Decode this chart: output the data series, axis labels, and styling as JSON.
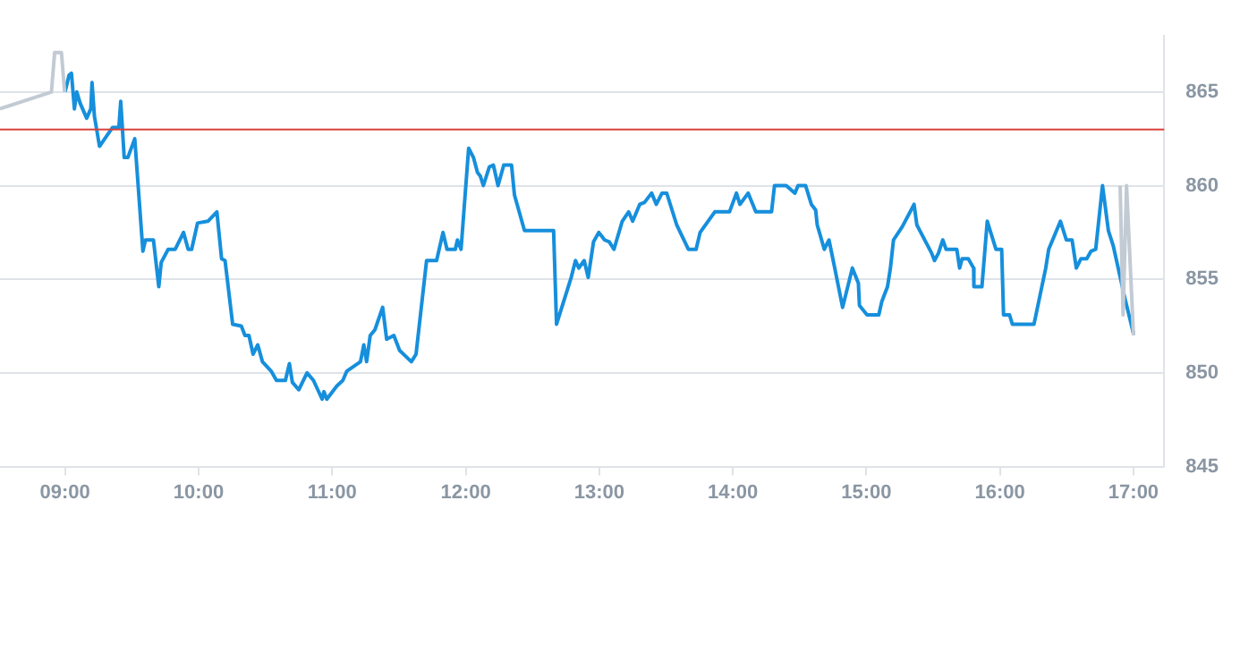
{
  "chart_data": {
    "type": "line",
    "xlim": [
      8.513,
      17.23
    ],
    "ylim": [
      845,
      868
    ],
    "xticks": [
      {
        "value": 9,
        "label": "09:00"
      },
      {
        "value": 10,
        "label": "10:00"
      },
      {
        "value": 11,
        "label": "11:00"
      },
      {
        "value": 12,
        "label": "12:00"
      },
      {
        "value": 13,
        "label": "13:00"
      },
      {
        "value": 14,
        "label": "14:00"
      },
      {
        "value": 15,
        "label": "15:00"
      },
      {
        "value": 16,
        "label": "16:00"
      },
      {
        "value": 17,
        "label": "17:00"
      }
    ],
    "yticks": [
      845,
      850,
      855,
      860,
      865
    ],
    "grid": "y",
    "legend": false,
    "marker": "none",
    "line_style": "solid",
    "ref_lines": [
      {
        "axis": "y",
        "value": 863,
        "color": "#d9413b"
      }
    ],
    "series": [
      {
        "color": "#c2cad3",
        "x": [
          8.513,
          8.898,
          8.922,
          8.973,
          8.997,
          16.803,
          16.9,
          16.922,
          16.948,
          17.0
        ],
        "values": [
          864.1,
          865.0,
          867.1,
          867.1,
          865.0,
          null,
          860.0,
          853.1,
          860.0,
          852.0
        ]
      },
      {
        "color": "#168fdc",
        "x": [
          9.0,
          9.03,
          9.048,
          9.07,
          9.088,
          9.113,
          9.162,
          9.193,
          9.202,
          9.22,
          9.258,
          9.355,
          9.403,
          9.417,
          9.443,
          9.47,
          9.522,
          9.583,
          9.602,
          9.662,
          9.702,
          9.72,
          9.772,
          9.825,
          9.887,
          9.922,
          9.948,
          9.992,
          10.07,
          10.137,
          10.172,
          10.198,
          10.255,
          10.32,
          10.347,
          10.377,
          10.408,
          10.443,
          10.478,
          10.543,
          10.583,
          10.65,
          10.68,
          10.702,
          10.75,
          10.812,
          10.86,
          10.925,
          10.938,
          10.96,
          11.035,
          11.08,
          11.11,
          11.212,
          11.237,
          11.258,
          11.285,
          11.32,
          11.378,
          11.408,
          11.462,
          11.505,
          11.593,
          11.628,
          11.707,
          11.782,
          11.83,
          11.86,
          11.922,
          11.938,
          11.965,
          12.022,
          12.058,
          12.088,
          12.11,
          12.132,
          12.177,
          12.207,
          12.242,
          12.285,
          12.343,
          12.365,
          12.44,
          12.658,
          12.68,
          12.79,
          12.822,
          12.847,
          12.887,
          12.917,
          12.957,
          12.997,
          13.04,
          13.075,
          13.11,
          13.172,
          13.22,
          13.25,
          13.303,
          13.338,
          13.392,
          13.427,
          13.47,
          13.505,
          13.58,
          13.667,
          13.725,
          13.755,
          13.865,
          13.975,
          14.027,
          14.053,
          14.115,
          14.172,
          14.29,
          14.312,
          14.4,
          14.465,
          14.488,
          14.545,
          14.588,
          14.62,
          14.632,
          14.685,
          14.72,
          14.763,
          14.822,
          14.895,
          14.94,
          14.948,
          15.005,
          15.093,
          15.115,
          15.158,
          15.18,
          15.203,
          15.268,
          15.357,
          15.378,
          15.488,
          15.51,
          15.54,
          15.572,
          15.597,
          15.677,
          15.698,
          15.717,
          15.763,
          15.803,
          15.805,
          15.865,
          15.905,
          15.97,
          16.013,
          16.027,
          16.072,
          16.093,
          16.255,
          16.343,
          16.365,
          16.453,
          16.497,
          16.54,
          16.572,
          16.607,
          16.65,
          16.682,
          16.717,
          16.768,
          16.812,
          16.848,
          16.935,
          17.0
        ],
        "values": [
          865.0,
          865.9,
          866.0,
          864.1,
          865.0,
          864.4,
          863.6,
          864.1,
          865.5,
          863.7,
          862.1,
          863.1,
          863.1,
          864.5,
          861.5,
          861.5,
          862.5,
          856.5,
          857.1,
          857.1,
          854.6,
          855.9,
          856.6,
          856.6,
          857.5,
          856.6,
          856.6,
          858.0,
          858.1,
          858.6,
          856.1,
          856.0,
          852.6,
          852.5,
          852.0,
          852.0,
          851.0,
          851.5,
          850.6,
          850.1,
          849.6,
          849.6,
          850.5,
          849.5,
          849.1,
          850.0,
          849.6,
          848.6,
          849.0,
          848.6,
          849.3,
          849.6,
          850.1,
          850.6,
          851.5,
          850.6,
          852.0,
          852.3,
          853.5,
          851.8,
          852.0,
          851.2,
          850.6,
          851.0,
          856.0,
          856.0,
          857.5,
          856.6,
          856.6,
          857.1,
          856.6,
          862.0,
          861.5,
          860.7,
          860.5,
          860.0,
          861.0,
          861.1,
          860.0,
          861.1,
          861.1,
          859.5,
          857.6,
          857.6,
          852.6,
          855.1,
          856.0,
          855.6,
          856.0,
          855.1,
          857.0,
          857.5,
          857.1,
          857.0,
          856.6,
          858.1,
          858.6,
          858.1,
          859.0,
          859.1,
          859.6,
          859.0,
          859.6,
          859.6,
          857.9,
          856.6,
          856.6,
          857.5,
          858.6,
          858.6,
          859.6,
          859.0,
          859.6,
          858.6,
          858.6,
          860.0,
          860.0,
          859.6,
          860.0,
          860.0,
          859.0,
          858.7,
          857.9,
          856.6,
          857.1,
          855.6,
          853.5,
          855.6,
          854.8,
          853.6,
          853.1,
          853.1,
          853.8,
          854.6,
          855.6,
          857.1,
          857.8,
          859.0,
          857.9,
          856.4,
          856.0,
          856.4,
          857.1,
          856.6,
          856.6,
          855.6,
          856.1,
          856.1,
          855.6,
          854.6,
          854.6,
          858.1,
          856.6,
          856.6,
          853.1,
          853.1,
          852.6,
          852.6,
          855.6,
          856.6,
          858.1,
          857.1,
          857.1,
          855.6,
          856.1,
          856.1,
          856.5,
          856.6,
          860.0,
          857.6,
          856.8,
          854.0,
          852.1
        ]
      }
    ]
  }
}
